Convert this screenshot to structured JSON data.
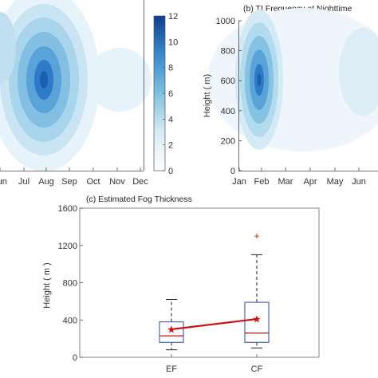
{
  "chart_data": [
    {
      "type": "heatmap",
      "title": "",
      "x_ticks": [
        "Jun",
        "Jul",
        "Aug",
        "Sep",
        "Oct",
        "Nov",
        "Dec"
      ],
      "colorbar": {
        "min": 0,
        "max": 12,
        "ticks": [
          0,
          2,
          4,
          6,
          8,
          10,
          12
        ]
      },
      "peak": {
        "month": "Aug",
        "value": 11
      },
      "colors": {
        "low": "#ffffff",
        "high": "#0b3f8f"
      }
    },
    {
      "type": "heatmap",
      "title": "(b) TI Frequency at Nighttime",
      "x_ticks": [
        "Jan",
        "Feb",
        "Mar",
        "Apr",
        "May",
        "Jun"
      ],
      "ylabel": "Height ( m)",
      "y_ticks": [
        0,
        200,
        400,
        600,
        800,
        1000
      ],
      "ylim": [
        0,
        1000
      ],
      "peak": {
        "month": "Feb",
        "height": 600,
        "value": 10
      }
    },
    {
      "type": "box",
      "title": "(c) Estimated Fog Thickness",
      "categories": [
        "EF",
        "CF"
      ],
      "ylabel": "Height ( m )",
      "y_ticks": [
        0,
        400,
        800,
        1200,
        1600
      ],
      "ylim": [
        0,
        1600
      ],
      "boxes": [
        {
          "name": "EF",
          "min": 80,
          "q1": 160,
          "median": 230,
          "q3": 380,
          "max": 620,
          "mean": 300,
          "outliers": []
        },
        {
          "name": "CF",
          "min": 100,
          "q1": 160,
          "median": 260,
          "q3": 590,
          "max": 1100,
          "mean": 410,
          "outliers": [
            1300
          ]
        }
      ],
      "mean_line_color": "#cc1111",
      "box_color": "#4a66b0",
      "median_color": "#cc1111"
    }
  ]
}
